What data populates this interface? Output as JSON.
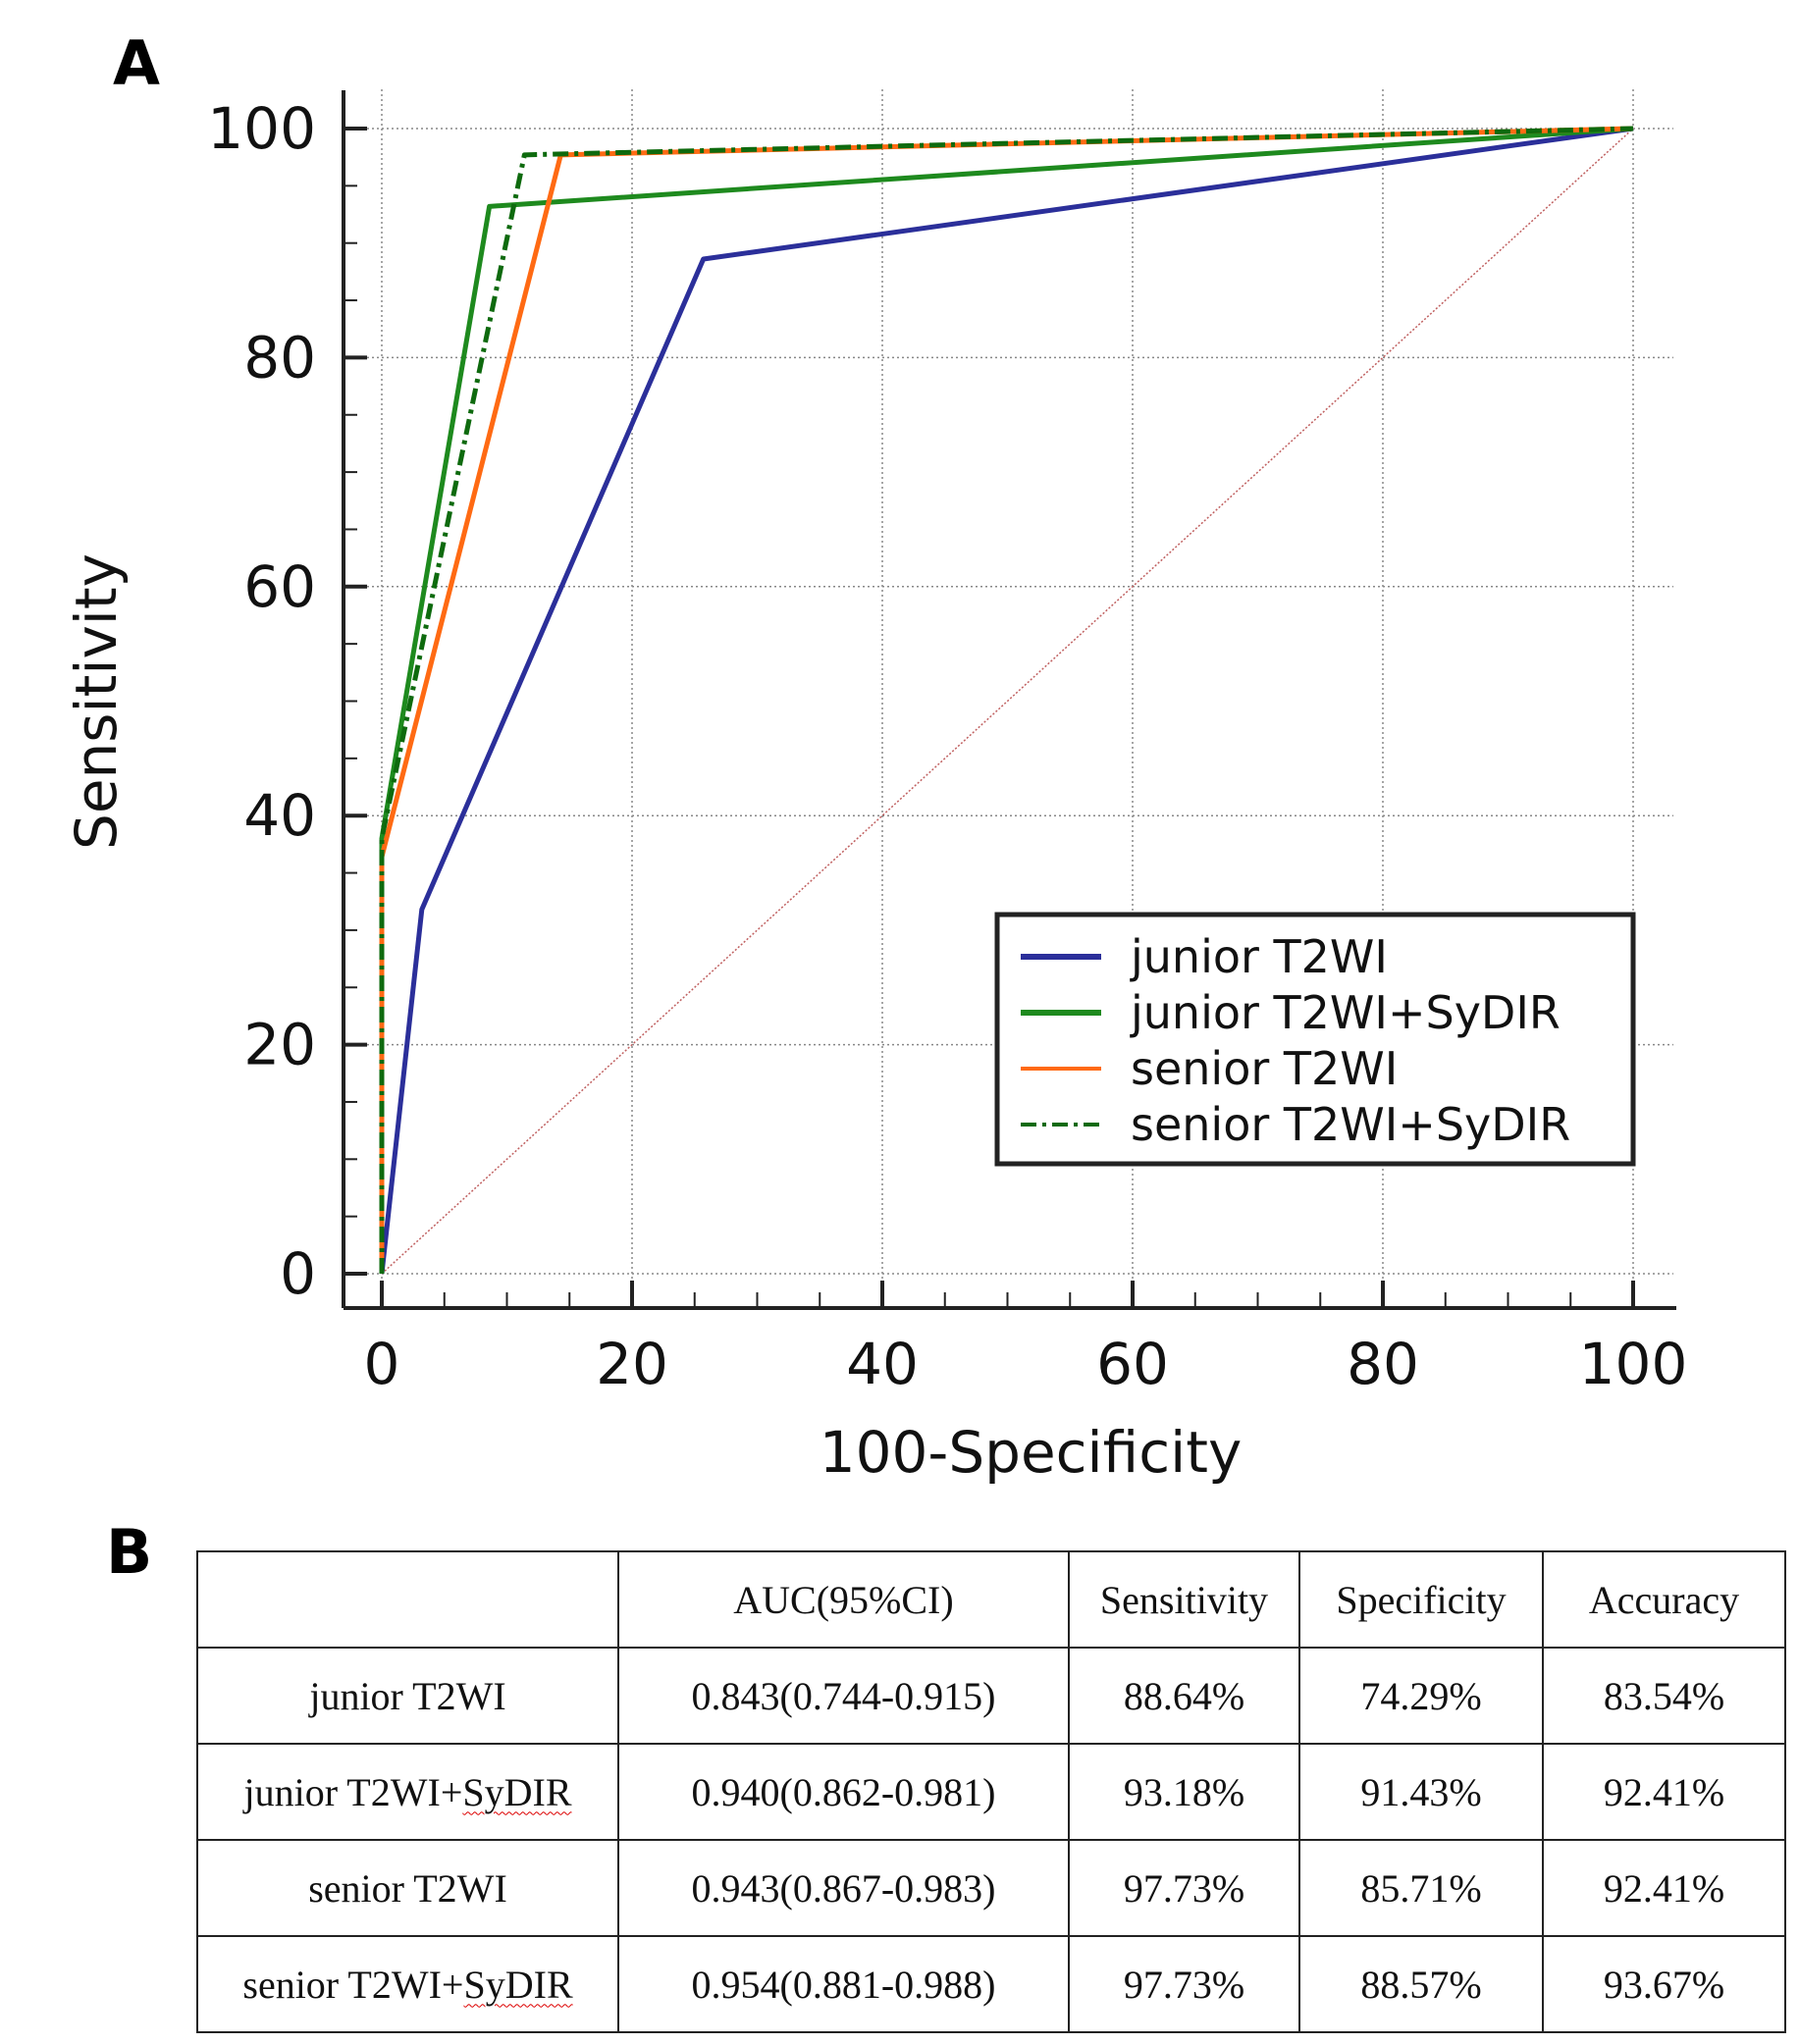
{
  "panel_a_label": "A",
  "panel_b_label": "B",
  "chart_data": {
    "type": "line",
    "xlabel": "100-Specificity",
    "ylabel": "Sensitivity",
    "xlim": [
      0,
      100
    ],
    "ylim": [
      0,
      100
    ],
    "xticks": [
      0,
      20,
      40,
      60,
      80,
      100
    ],
    "yticks": [
      0,
      20,
      40,
      60,
      80,
      100
    ],
    "grid": true,
    "legend_position": "bottom-right",
    "series": [
      {
        "name": "junior T2WI",
        "color": "#2b2f9a",
        "style": "solid",
        "x": [
          0,
          3.2,
          25.7,
          100
        ],
        "y": [
          0,
          31.8,
          88.6,
          100
        ]
      },
      {
        "name": "junior T2WI+SyDIR",
        "color": "#1e8a1e",
        "style": "solid",
        "x": [
          0,
          0,
          8.6,
          100
        ],
        "y": [
          0,
          38,
          93.2,
          100
        ]
      },
      {
        "name": "senior T2WI",
        "color": "#ff6a13",
        "style": "solid",
        "x": [
          0,
          0,
          14.3,
          100
        ],
        "y": [
          0,
          36.4,
          97.7,
          100
        ]
      },
      {
        "name": "senior T2WI+SyDIR",
        "color": "#0e6a0e",
        "style": "dashdot",
        "x": [
          0,
          0,
          11.4,
          100
        ],
        "y": [
          0,
          38,
          97.7,
          100
        ]
      }
    ],
    "reference_line": {
      "color": "#c06060",
      "x": [
        0,
        100
      ],
      "y": [
        0,
        100
      ]
    }
  },
  "table": {
    "headers": [
      "",
      "AUC(95%CI)",
      "Sensitivity",
      "Specificity",
      "Accuracy"
    ],
    "rows": [
      [
        "junior T2WI",
        "0.843(0.744-0.915)",
        "88.64%",
        "74.29%",
        "83.54%"
      ],
      [
        "junior T2WI+SyDIR",
        "0.940(0.862-0.981)",
        "93.18%",
        "91.43%",
        "92.41%"
      ],
      [
        "senior T2WI",
        "0.943(0.867-0.983)",
        "97.73%",
        "85.71%",
        "92.41%"
      ],
      [
        "senior T2WI+SyDIR",
        "0.954(0.881-0.988)",
        "97.73%",
        "88.57%",
        "93.67%"
      ]
    ]
  }
}
